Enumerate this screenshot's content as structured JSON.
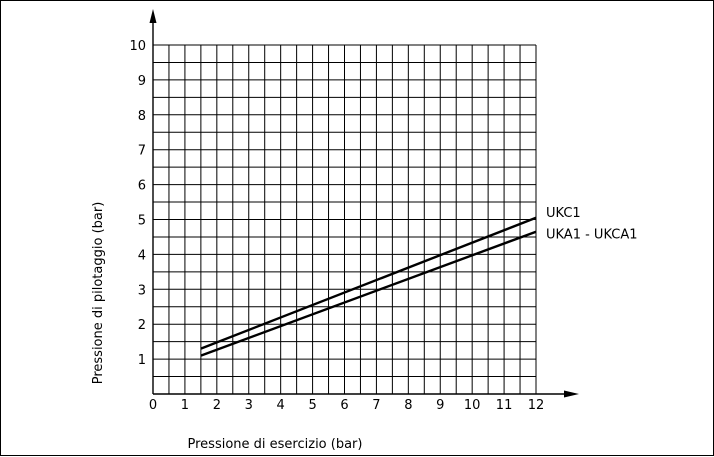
{
  "chart_data": {
    "type": "line",
    "title": "",
    "xlabel": "Pressione di esercizio (bar)",
    "ylabel": "Pressione di pilotaggio (bar)",
    "xlim": [
      0,
      12
    ],
    "ylim": [
      0,
      10.5
    ],
    "grid": true,
    "x_ticks": [
      "0",
      "1",
      "2",
      "3",
      "4",
      "5",
      "6",
      "7",
      "8",
      "9",
      "10",
      "11",
      "12"
    ],
    "y_ticks": [
      "1",
      "2",
      "3",
      "4",
      "5",
      "6",
      "7",
      "8",
      "9",
      "10"
    ],
    "series": [
      {
        "name": "UKC1",
        "x": [
          1.5,
          12
        ],
        "y": [
          1.3,
          5.05
        ]
      },
      {
        "name": "UKA1 - UKCA1",
        "x": [
          1.5,
          12
        ],
        "y": [
          1.1,
          4.65
        ]
      }
    ]
  }
}
